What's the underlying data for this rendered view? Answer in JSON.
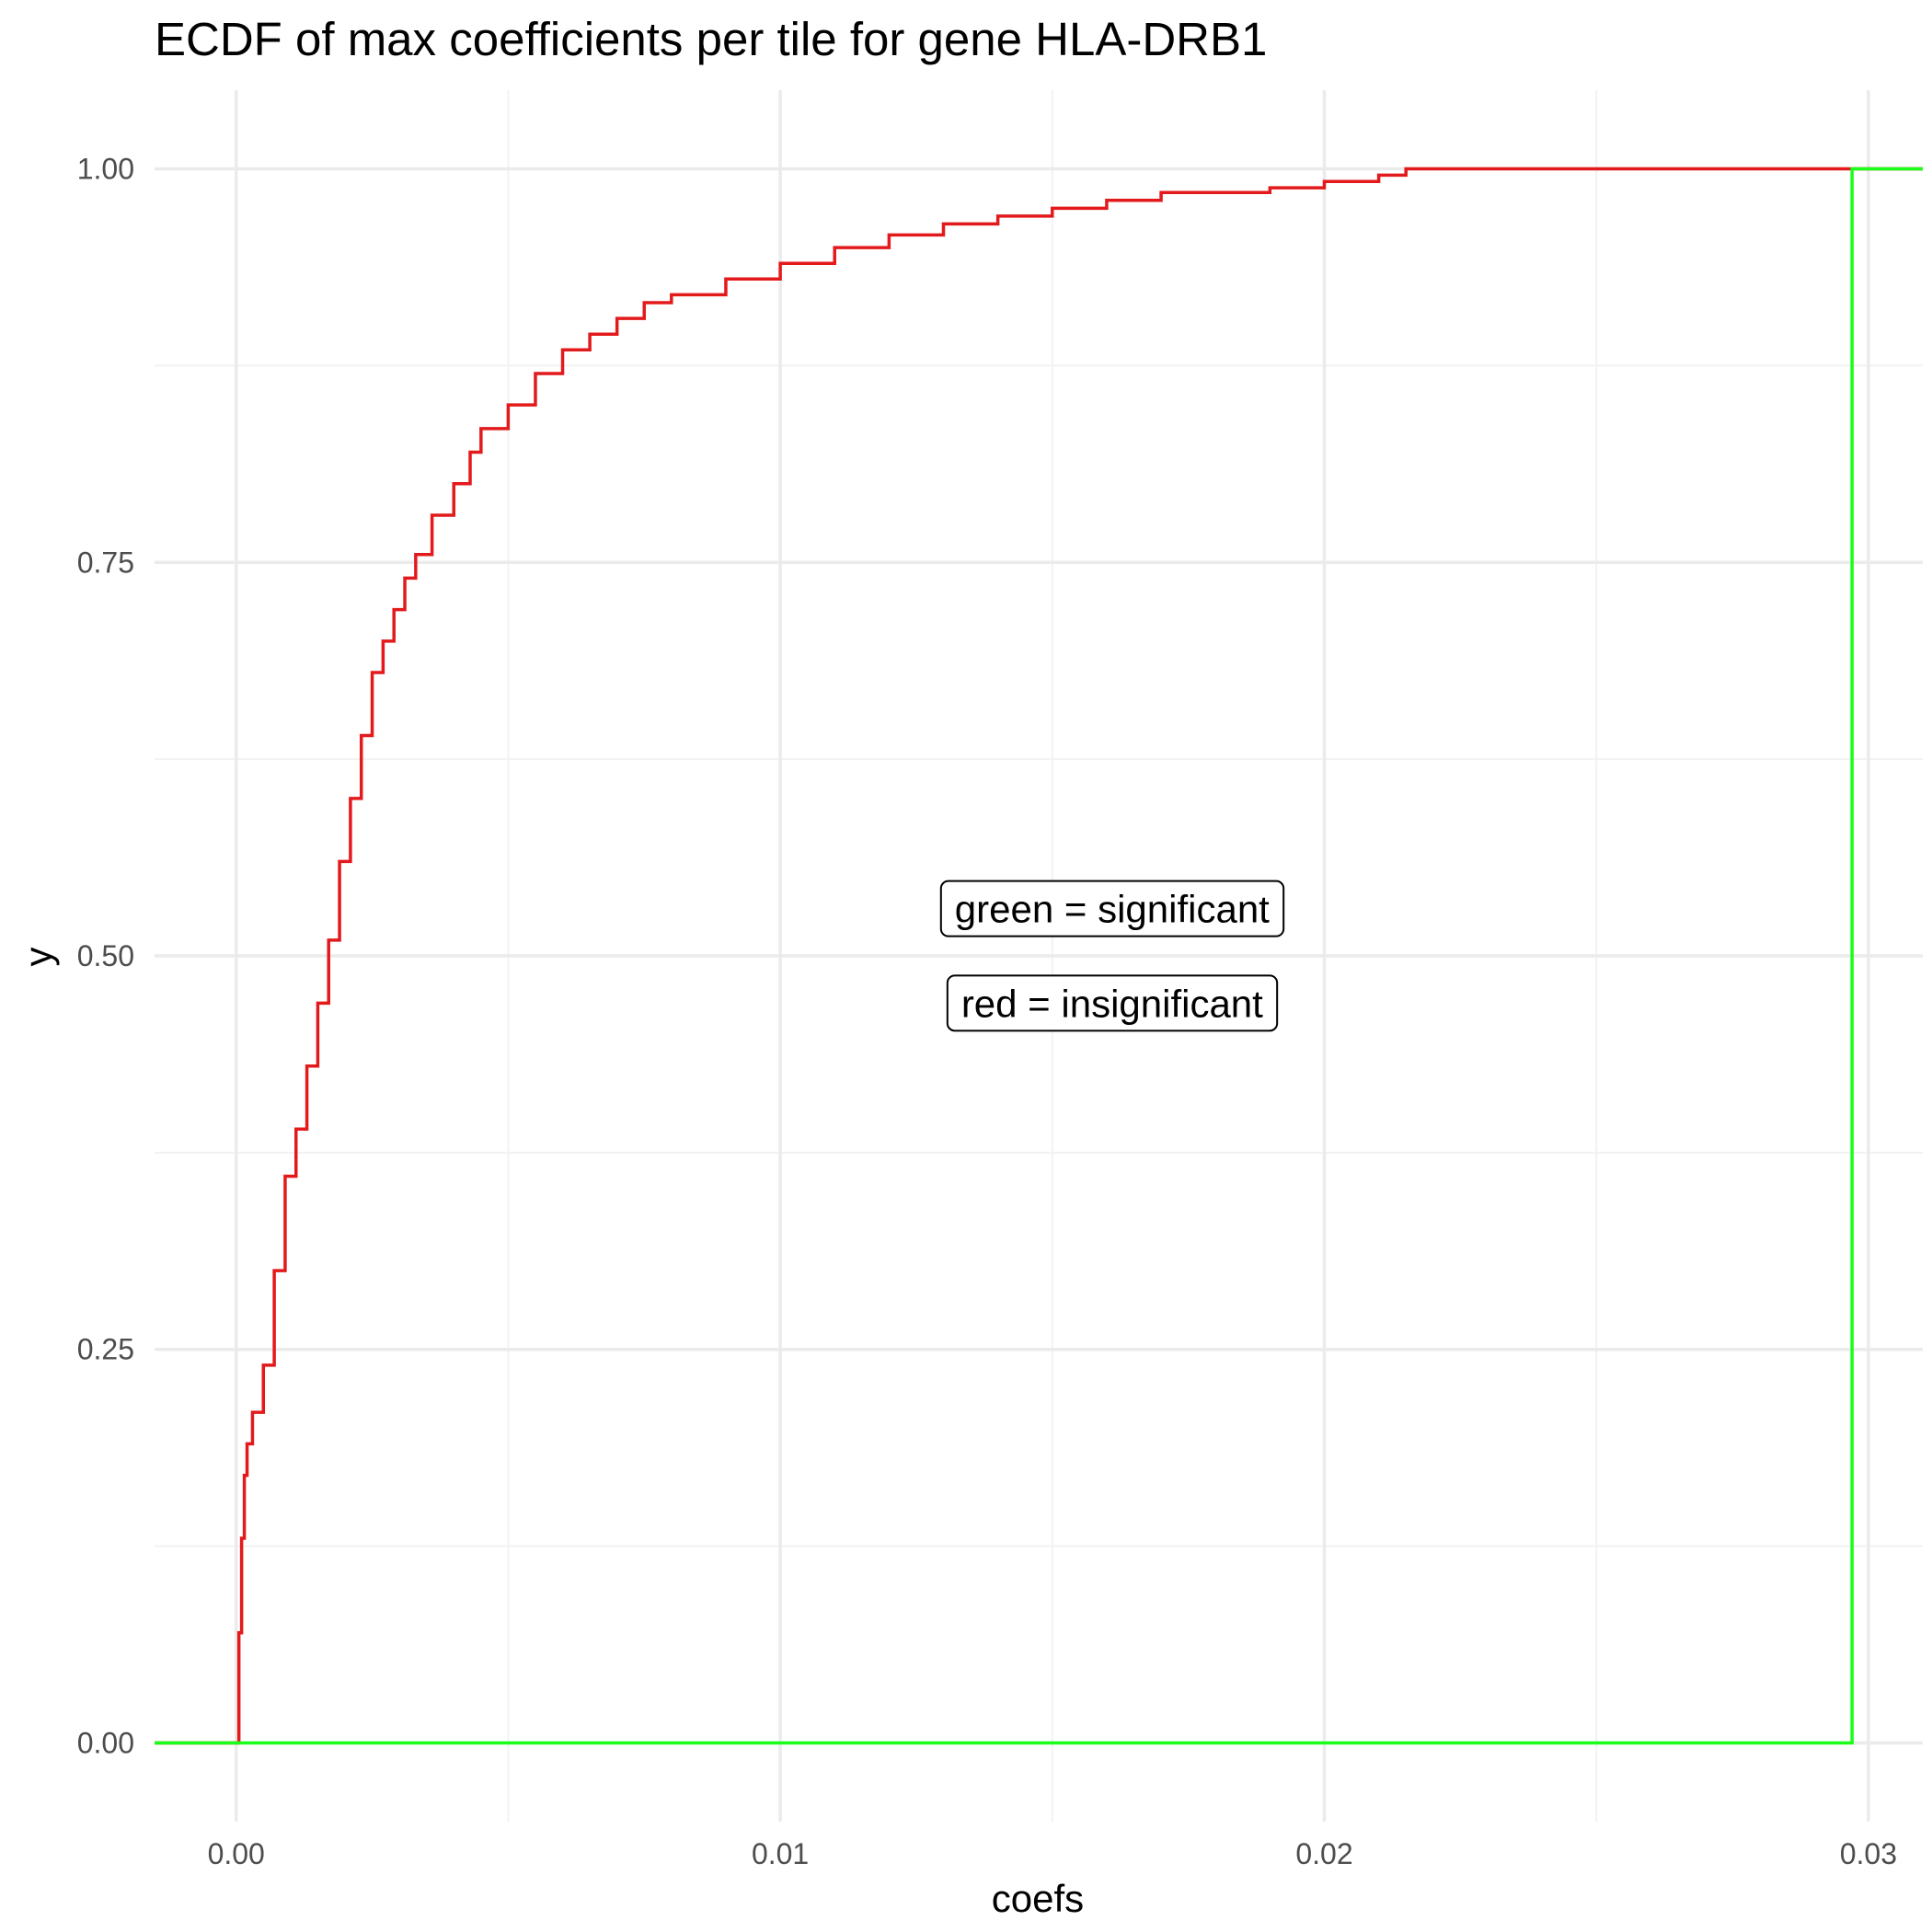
{
  "chart_data": {
    "type": "line",
    "subtype": "ecdf-step",
    "title": "ECDF of max coefficients per tile for gene HLA-DRB1",
    "xlabel": "coefs",
    "ylabel": "y",
    "xlim": [
      -0.0015,
      0.031
    ],
    "ylim": [
      -0.05,
      1.05
    ],
    "x_ticks": [
      0.0,
      0.01,
      0.02,
      0.03
    ],
    "x_tick_labels": [
      "0.00",
      "0.01",
      "0.02",
      "0.03"
    ],
    "y_ticks": [
      0.0,
      0.25,
      0.5,
      0.75,
      1.0
    ],
    "y_tick_labels": [
      "0.00",
      "0.25",
      "0.50",
      "0.75",
      "1.00"
    ],
    "grid": true,
    "legend": "none",
    "annotations": [
      {
        "text": "green = significant",
        "x": 0.0161,
        "y": 0.53
      },
      {
        "text": "red = insignificant",
        "x": 0.0161,
        "y": 0.47
      }
    ],
    "series": [
      {
        "label": "insignificant",
        "color": "#e31a1c",
        "step": true,
        "x": [
          -0.0015,
          0.0,
          5e-05,
          0.0001,
          0.00015,
          0.0002,
          0.0003,
          0.0005,
          0.0007,
          0.0009,
          0.0011,
          0.0013,
          0.0015,
          0.0017,
          0.0019,
          0.0021,
          0.0023,
          0.0025,
          0.0027,
          0.0029,
          0.0031,
          0.0033,
          0.0036,
          0.004,
          0.0043,
          0.0045,
          0.005,
          0.0055,
          0.006,
          0.0065,
          0.007,
          0.0075,
          0.008,
          0.009,
          0.01,
          0.011,
          0.012,
          0.013,
          0.014,
          0.015,
          0.016,
          0.017,
          0.019,
          0.02,
          0.021,
          0.0215,
          0.031
        ],
        "y": [
          0.0,
          0.0,
          0.07,
          0.13,
          0.17,
          0.19,
          0.21,
          0.24,
          0.3,
          0.36,
          0.39,
          0.43,
          0.47,
          0.51,
          0.56,
          0.6,
          0.64,
          0.68,
          0.7,
          0.72,
          0.74,
          0.755,
          0.78,
          0.8,
          0.82,
          0.835,
          0.85,
          0.87,
          0.885,
          0.895,
          0.905,
          0.915,
          0.92,
          0.93,
          0.94,
          0.95,
          0.958,
          0.965,
          0.97,
          0.975,
          0.98,
          0.985,
          0.988,
          0.992,
          0.996,
          1.0,
          1.0
        ]
      },
      {
        "label": "significant",
        "color": "#1aff1a",
        "step": true,
        "x": [
          -0.0015,
          0.0297,
          0.0297,
          0.031
        ],
        "y": [
          0.0,
          0.0,
          1.0,
          1.0
        ]
      }
    ]
  }
}
